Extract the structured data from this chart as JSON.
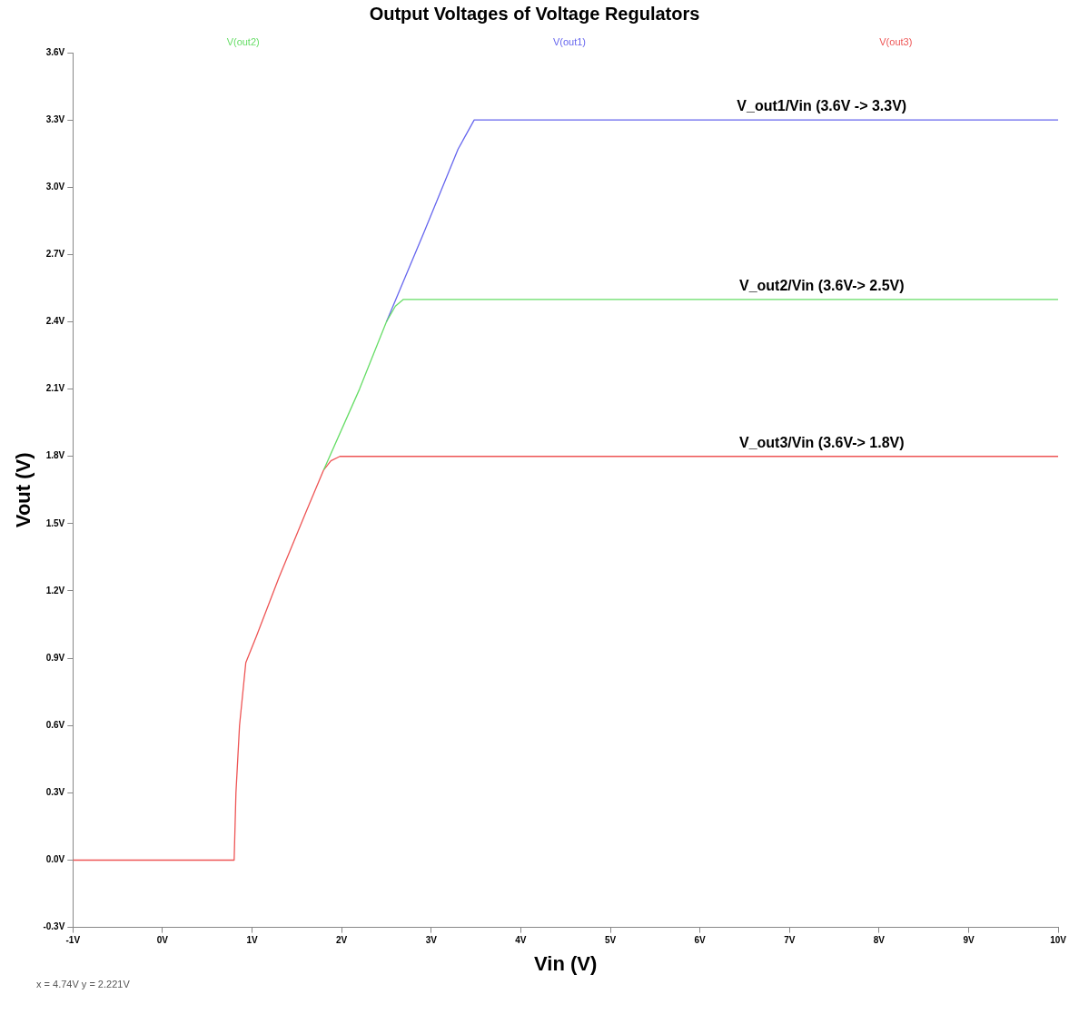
{
  "chart_data": {
    "type": "line",
    "title": "Output Voltages of Voltage Regulators",
    "xlabel": "Vin (V)",
    "ylabel": "Vout (V)",
    "xlim": [
      -1,
      10
    ],
    "xticks": [
      {
        "value": -1,
        "label": "-1V"
      },
      {
        "value": 0,
        "label": "0V"
      },
      {
        "value": 1,
        "label": "1V"
      },
      {
        "value": 2,
        "label": "2V"
      },
      {
        "value": 3,
        "label": "3V"
      },
      {
        "value": 4,
        "label": "4V"
      },
      {
        "value": 5,
        "label": "5V"
      },
      {
        "value": 6,
        "label": "6V"
      },
      {
        "value": 7,
        "label": "7V"
      },
      {
        "value": 8,
        "label": "8V"
      },
      {
        "value": 9,
        "label": "9V"
      },
      {
        "value": 10,
        "label": "10V"
      }
    ],
    "ylim": [
      -0.3,
      3.6
    ],
    "yticks": [
      {
        "value": -0.3,
        "label": "-0.3V"
      },
      {
        "value": 0,
        "label": "0.0V"
      },
      {
        "value": 0.3,
        "label": "0.3V"
      },
      {
        "value": 0.6,
        "label": "0.6V"
      },
      {
        "value": 0.9,
        "label": "0.9V"
      },
      {
        "value": 1.2,
        "label": "1.2V"
      },
      {
        "value": 1.5,
        "label": "1.5V"
      },
      {
        "value": 1.8,
        "label": "1.8V"
      },
      {
        "value": 2.1,
        "label": "2.1V"
      },
      {
        "value": 2.4,
        "label": "2.4V"
      },
      {
        "value": 2.7,
        "label": "2.7V"
      },
      {
        "value": 3.0,
        "label": "3.0V"
      },
      {
        "value": 3.3,
        "label": "3.3V"
      },
      {
        "value": 3.6,
        "label": "3.6V"
      }
    ],
    "grid": false,
    "legend": "top",
    "marker": "none",
    "line_style": "solid",
    "series": [
      {
        "name": "V(out2)",
        "color": "#66dd66",
        "x": [
          1.8,
          2.2,
          2.5,
          2.6,
          2.69,
          10
        ],
        "values": [
          1.74,
          2.1,
          2.4,
          2.47,
          2.5,
          2.5
        ]
      },
      {
        "name": "V(out1)",
        "color": "#6666ee",
        "x": [
          2.5,
          2.9,
          3.3,
          3.48,
          10
        ],
        "values": [
          2.4,
          2.78,
          3.17,
          3.3,
          3.3
        ]
      },
      {
        "name": "V(out3)",
        "color": "#ee5555",
        "x": [
          -1,
          0.8,
          0.82,
          0.86,
          0.93,
          1.05,
          1.3,
          1.6,
          1.8,
          1.88,
          1.98,
          10
        ],
        "values": [
          0,
          0,
          0.3,
          0.6,
          0.88,
          1.0,
          1.26,
          1.55,
          1.74,
          1.78,
          1.8,
          1.8
        ]
      }
    ],
    "annotations": [
      {
        "text": "V_out1/Vin (3.6V -> 3.3V)",
        "y": 3.3
      },
      {
        "text": "V_out2/Vin (3.6V-> 2.5V)",
        "y": 2.5
      },
      {
        "text": "V_out3/Vin (3.6V-> 1.8V)",
        "y": 1.8
      },
      "x = 4.74V   y = 2.221V"
    ]
  }
}
